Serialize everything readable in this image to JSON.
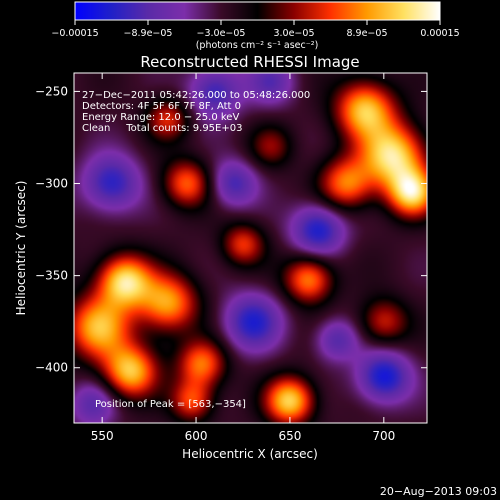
{
  "colorbar": {
    "tick_labels": [
      "−0.00015",
      "−8.9e−05",
      "−3.0e−05",
      "3.0e−05",
      "8.9e−05",
      "0.00015"
    ],
    "units_label": "(photons cm⁻² s⁻¹ asec⁻²)",
    "range": [
      -0.00015,
      0.00015
    ],
    "stops": [
      "#0000ff",
      "#2020c8",
      "#5a2aa8",
      "#7c2eaa",
      "#3a0a28",
      "#000000",
      "#8a0000",
      "#ff3000",
      "#ff9a00",
      "#ffe060",
      "#ffffff"
    ]
  },
  "chart_data": {
    "type": "heatmap",
    "title": "Reconstructed RHESSI Image",
    "xlabel": "Heliocentric X (arcsec)",
    "ylabel": "Heliocentric Y (arcsec)",
    "xlim": [
      535,
      723
    ],
    "ylim": [
      -430,
      -240
    ],
    "xticks": [
      550,
      600,
      650,
      700
    ],
    "yticks": [
      -250,
      -300,
      -350,
      -400
    ],
    "xtick_labels": [
      "550",
      "600",
      "650",
      "700"
    ],
    "ytick_labels": [
      "−250",
      "−300",
      "−350",
      "−400"
    ],
    "annotations": [
      "27−Dec−2011 05:42:26.000 to 05:48:26.000",
      "Detectors: 4F 5F 6F 7F 8F, Att 0",
      "Energy Range: 12.0 − 25.0 keV",
      "Clean     Total counts: 9.95E+03"
    ],
    "peak_label": "Position of Peak = [563,−354]",
    "sources": [
      {
        "x": 562,
        "y": -353,
        "amp": 1.0,
        "sigma": 10
      },
      {
        "x": 548,
        "y": -378,
        "amp": 0.85,
        "sigma": 12
      },
      {
        "x": 585,
        "y": -365,
        "amp": 0.8,
        "sigma": 11
      },
      {
        "x": 565,
        "y": -402,
        "amp": 0.9,
        "sigma": 10
      },
      {
        "x": 603,
        "y": -398,
        "amp": 0.7,
        "sigma": 9
      },
      {
        "x": 598,
        "y": -418,
        "amp": 0.6,
        "sigma": 8
      },
      {
        "x": 650,
        "y": -418,
        "amp": 0.95,
        "sigma": 9
      },
      {
        "x": 690,
        "y": -260,
        "amp": 0.9,
        "sigma": 11
      },
      {
        "x": 705,
        "y": -285,
        "amp": 1.0,
        "sigma": 12
      },
      {
        "x": 715,
        "y": -305,
        "amp": 0.95,
        "sigma": 9
      },
      {
        "x": 680,
        "y": -300,
        "amp": 0.7,
        "sigma": 10
      },
      {
        "x": 660,
        "y": -352,
        "amp": 0.75,
        "sigma": 9
      },
      {
        "x": 595,
        "y": -300,
        "amp": 0.65,
        "sigma": 9
      },
      {
        "x": 585,
        "y": -265,
        "amp": 0.5,
        "sigma": 8
      },
      {
        "x": 625,
        "y": -333,
        "amp": 0.55,
        "sigma": 8
      },
      {
        "x": 700,
        "y": -375,
        "amp": 0.5,
        "sigma": 9
      },
      {
        "x": 640,
        "y": -280,
        "amp": 0.35,
        "sigma": 8
      },
      {
        "x": 555,
        "y": -300,
        "amp": -0.6,
        "sigma": 11
      },
      {
        "x": 610,
        "y": -250,
        "amp": -0.55,
        "sigma": 10
      },
      {
        "x": 665,
        "y": -325,
        "amp": -0.65,
        "sigma": 10
      },
      {
        "x": 700,
        "y": -405,
        "amp": -0.7,
        "sigma": 10
      },
      {
        "x": 630,
        "y": -375,
        "amp": -0.6,
        "sigma": 11
      },
      {
        "x": 620,
        "y": -300,
        "amp": -0.5,
        "sigma": 9
      },
      {
        "x": 640,
        "y": -245,
        "amp": -0.4,
        "sigma": 9
      },
      {
        "x": 545,
        "y": -420,
        "amp": -0.4,
        "sigma": 9
      },
      {
        "x": 675,
        "y": -385,
        "amp": -0.45,
        "sigma": 8
      }
    ]
  },
  "footer": {
    "timestamp": "20−Aug−2013 09:03"
  }
}
